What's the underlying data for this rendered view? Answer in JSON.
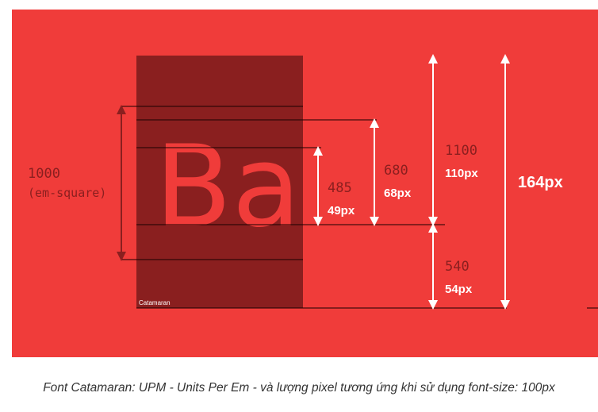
{
  "colors": {
    "background": "#f03c3a",
    "glyph_box": "#8a1f1f",
    "glyph": "#f03c3a",
    "line": "#1a0000",
    "dark_text": "#8a1f1f",
    "arrow_white": "#ffffff",
    "arrow_dark": "#8a1f1f",
    "caption": "#333333"
  },
  "diagram": {
    "glyph_text": "Ba",
    "font_label": "Catamaran",
    "em_square": {
      "value": "1000",
      "label": "(em-square)"
    },
    "measures": [
      {
        "id": "x-height",
        "units": "485",
        "pixels": "49px"
      },
      {
        "id": "cap-height",
        "units": "680",
        "pixels": "68px"
      },
      {
        "id": "ascender",
        "units": "1100",
        "pixels": "110px"
      },
      {
        "id": "descender",
        "units": "540",
        "pixels": "54px"
      },
      {
        "id": "total",
        "pixels": "164px"
      }
    ]
  },
  "caption": "Font Catamaran: UPM - Units Per Em - và lượng pixel tương ứng khi sử dụng font-size: 100px"
}
